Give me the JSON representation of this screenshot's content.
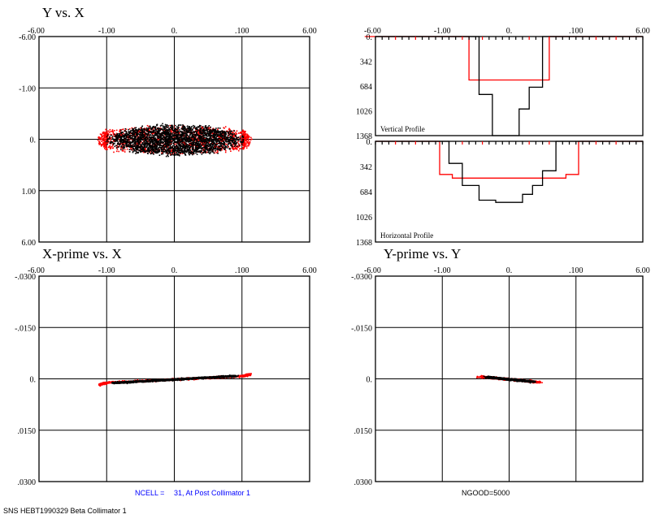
{
  "colors": {
    "primary": "#000000",
    "secondary": "#ff0000",
    "footer_accent": "#0000ff",
    "background": "#ffffff"
  },
  "chart_data": [
    {
      "id": "yx",
      "type": "scatter",
      "title": "Y vs. X",
      "x_ticks": [
        "-6.00",
        "-1.00",
        "0.",
        ".100",
        "6.00"
      ],
      "y_ticks": [
        "-6.00",
        "-1.00",
        "0.",
        "1.00",
        "6.00"
      ],
      "grid": true,
      "series": [
        {
          "color": "#ff0000",
          "shape": "ellipse",
          "center": [
            0,
            0
          ],
          "half_width": 1.75,
          "half_height": 0.3,
          "count": 1400
        },
        {
          "color": "#000000",
          "shape": "ellipse",
          "center": [
            0,
            0
          ],
          "half_width": 1.1,
          "half_height": 0.33,
          "count": 2600
        }
      ]
    },
    {
      "id": "vprof",
      "type": "bar",
      "label": "Vertical Profile",
      "x_ticks": [
        "-6.00",
        "-1.00",
        "0.",
        ".100",
        "6.00"
      ],
      "y_ticks": [
        "0.",
        "342",
        "684",
        "1026",
        "1368"
      ],
      "ylim": [
        0,
        1368
      ],
      "series": [
        {
          "color": "#ff0000",
          "steps": [
            [
              -6.8,
              0
            ],
            [
              -0.6,
              0
            ],
            [
              -0.6,
              600
            ],
            [
              -0.45,
              600
            ],
            [
              -0.45,
              600
            ],
            [
              0.45,
              600
            ],
            [
              0.45,
              600
            ],
            [
              0.6,
              600
            ],
            [
              0.6,
              0
            ],
            [
              6,
              0
            ]
          ]
        },
        {
          "color": "#000000",
          "steps": [
            [
              -6,
              0
            ],
            [
              -0.45,
              0
            ],
            [
              -0.45,
              800
            ],
            [
              -0.25,
              800
            ],
            [
              -0.25,
              1368
            ],
            [
              -0.05,
              1368
            ],
            [
              -0.05,
              1368
            ],
            [
              0.15,
              1368
            ],
            [
              0.15,
              1000
            ],
            [
              0.3,
              1000
            ],
            [
              0.3,
              700
            ],
            [
              0.5,
              700
            ],
            [
              0.5,
              0
            ],
            [
              6,
              0
            ]
          ]
        }
      ]
    },
    {
      "id": "hprof",
      "type": "bar",
      "label": "Horizontal Profile",
      "x_ticks": [
        "-6.00",
        "-1.00",
        "0.",
        ".100",
        "6.00"
      ],
      "y_ticks": [
        "0.",
        "342",
        "684",
        "1026",
        "1368"
      ],
      "ylim": [
        0,
        1368
      ],
      "series": [
        {
          "color": "#ff0000",
          "steps": [
            [
              -6,
              0
            ],
            [
              -1.2,
              0
            ],
            [
              -1.2,
              450
            ],
            [
              -0.85,
              450
            ],
            [
              -0.85,
              500
            ],
            [
              0.85,
              500
            ],
            [
              0.85,
              450
            ],
            [
              1.2,
              450
            ],
            [
              1.2,
              0
            ],
            [
              6,
              0
            ]
          ]
        },
        {
          "color": "#000000",
          "steps": [
            [
              -6,
              0
            ],
            [
              -0.9,
              0
            ],
            [
              -0.9,
              300
            ],
            [
              -0.7,
              300
            ],
            [
              -0.7,
              600
            ],
            [
              -0.45,
              600
            ],
            [
              -0.45,
              800
            ],
            [
              -0.2,
              800
            ],
            [
              -0.2,
              830
            ],
            [
              0.2,
              830
            ],
            [
              0.2,
              720
            ],
            [
              0.35,
              720
            ],
            [
              0.35,
              600
            ],
            [
              0.5,
              600
            ],
            [
              0.5,
              400
            ],
            [
              0.7,
              400
            ],
            [
              0.7,
              0
            ],
            [
              6,
              0
            ]
          ]
        }
      ]
    },
    {
      "id": "xpx",
      "type": "scatter",
      "title": "X-prime vs. X",
      "x_ticks": [
        "-6.00",
        "-1.00",
        "0.",
        ".100",
        "6.00"
      ],
      "y_ticks": [
        "-.0300",
        "-.0150",
        "0.",
        ".0150",
        ".0300"
      ],
      "grid": true,
      "series": [
        {
          "color": "#ff0000",
          "shape": "line",
          "from": [
            -1.6,
            0.0015
          ],
          "to": [
            1.6,
            -0.0015
          ],
          "spread": 0.0006,
          "count": 900
        },
        {
          "color": "#000000",
          "shape": "line",
          "from": [
            -0.9,
            0.001
          ],
          "to": [
            0.9,
            -0.001
          ],
          "spread": 0.0005,
          "count": 1800
        }
      ]
    },
    {
      "id": "ypy",
      "type": "scatter",
      "title": "Y-prime vs. Y",
      "x_ticks": [
        "-6.00",
        "-1.00",
        "0.",
        ".100",
        "6.00"
      ],
      "y_ticks": [
        "-.0300",
        "-.0150",
        "0.",
        ".0150",
        ".0300"
      ],
      "grid": true,
      "series": [
        {
          "color": "#ff0000",
          "shape": "line",
          "from": [
            -0.45,
            -0.0008
          ],
          "to": [
            0.45,
            0.0008
          ],
          "spread": 0.0006,
          "count": 500
        },
        {
          "color": "#000000",
          "shape": "line",
          "from": [
            -0.35,
            -0.0007
          ],
          "to": [
            0.35,
            0.0007
          ],
          "spread": 0.0005,
          "count": 900
        }
      ]
    }
  ],
  "footer": {
    "ncell_label": "NCELL =",
    "ncell_value": "31, At Post Collimator 1",
    "ngood": "NGOOD=5000",
    "run_id": "SNS HEBT1990329 Beta Collimator 1"
  }
}
